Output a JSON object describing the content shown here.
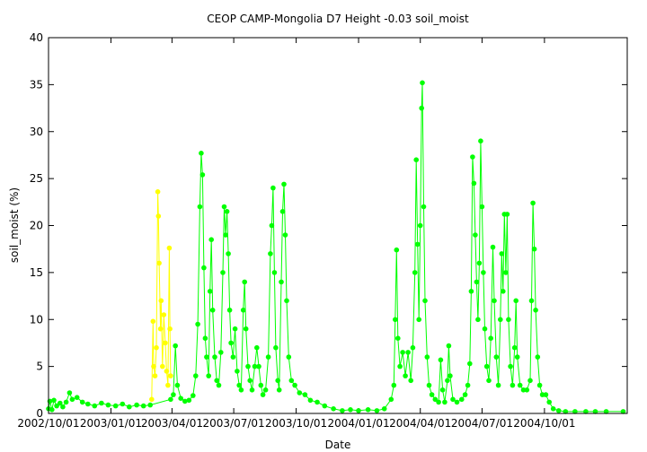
{
  "chart_data": {
    "type": "scatter",
    "title": "CEOP CAMP-Mongolia D7 Height -0.03 soil_moist",
    "xlabel": "Date",
    "ylabel": "soil_moist (%)",
    "xlim": [
      "2002-10-01",
      "2005-01-31"
    ],
    "ylim": [
      0,
      40
    ],
    "x_ticks": [
      "2002/10/01",
      "2003/01/01",
      "2003/04/01",
      "2003/07/01",
      "2003/10/01",
      "2004/01/01",
      "2004/04/01",
      "2004/07/01",
      "2004/10/01"
    ],
    "y_ticks": [
      0,
      5,
      10,
      15,
      20,
      25,
      30,
      35,
      40
    ],
    "grid": false,
    "legend": "none",
    "series": [
      {
        "color": "#00ff00",
        "style": "line-and-points",
        "points": [
          [
            "2002-10-01",
            0.5
          ],
          [
            "2002-10-03",
            1.3
          ],
          [
            "2002-10-06",
            0.4
          ],
          [
            "2002-10-09",
            1.4
          ],
          [
            "2002-10-13",
            0.8
          ],
          [
            "2002-10-18",
            1.1
          ],
          [
            "2002-10-22",
            0.7
          ],
          [
            "2002-10-27",
            1.2
          ],
          [
            "2002-11-01",
            2.2
          ],
          [
            "2002-11-05",
            1.5
          ],
          [
            "2002-11-12",
            1.7
          ],
          [
            "2002-11-20",
            1.2
          ],
          [
            "2002-11-28",
            1.0
          ],
          [
            "2002-12-08",
            0.8
          ],
          [
            "2002-12-18",
            1.1
          ],
          [
            "2002-12-28",
            0.9
          ],
          [
            "2003-01-08",
            0.8
          ],
          [
            "2003-01-18",
            1.0
          ],
          [
            "2003-01-28",
            0.7
          ],
          [
            "2003-02-08",
            0.9
          ],
          [
            "2003-02-18",
            0.8
          ],
          [
            "2003-02-28",
            0.9
          ],
          [
            "2003-03-30",
            1.5
          ],
          [
            "2003-04-03",
            2.0
          ],
          [
            "2003-04-06",
            7.2
          ],
          [
            "2003-04-09",
            3.0
          ],
          [
            "2003-04-14",
            1.6
          ],
          [
            "2003-04-20",
            1.3
          ],
          [
            "2003-04-26",
            1.4
          ],
          [
            "2003-05-02",
            1.9
          ],
          [
            "2003-05-06",
            4.0
          ],
          [
            "2003-05-09",
            9.5
          ],
          [
            "2003-05-12",
            22.0
          ],
          [
            "2003-05-14",
            27.7
          ],
          [
            "2003-05-16",
            25.4
          ],
          [
            "2003-05-18",
            15.5
          ],
          [
            "2003-05-20",
            8.0
          ],
          [
            "2003-05-22",
            6.0
          ],
          [
            "2003-05-25",
            4.0
          ],
          [
            "2003-05-27",
            13.0
          ],
          [
            "2003-05-29",
            18.5
          ],
          [
            "2003-05-31",
            11.0
          ],
          [
            "2003-06-03",
            6.0
          ],
          [
            "2003-06-06",
            3.5
          ],
          [
            "2003-06-09",
            3.0
          ],
          [
            "2003-06-12",
            6.5
          ],
          [
            "2003-06-15",
            15.0
          ],
          [
            "2003-06-17",
            22.0
          ],
          [
            "2003-06-19",
            19.0
          ],
          [
            "2003-06-21",
            21.5
          ],
          [
            "2003-06-23",
            17.0
          ],
          [
            "2003-06-25",
            11.0
          ],
          [
            "2003-06-27",
            7.5
          ],
          [
            "2003-06-30",
            6.0
          ],
          [
            "2003-07-03",
            9.0
          ],
          [
            "2003-07-06",
            4.5
          ],
          [
            "2003-07-09",
            3.0
          ],
          [
            "2003-07-12",
            2.5
          ],
          [
            "2003-07-15",
            11.0
          ],
          [
            "2003-07-17",
            14.0
          ],
          [
            "2003-07-19",
            9.0
          ],
          [
            "2003-07-22",
            5.0
          ],
          [
            "2003-07-25",
            3.5
          ],
          [
            "2003-07-28",
            2.5
          ],
          [
            "2003-08-01",
            5.0
          ],
          [
            "2003-08-04",
            7.0
          ],
          [
            "2003-08-07",
            5.0
          ],
          [
            "2003-08-10",
            3.0
          ],
          [
            "2003-08-13",
            2.0
          ],
          [
            "2003-08-17",
            2.5
          ],
          [
            "2003-08-21",
            6.0
          ],
          [
            "2003-08-24",
            17.0
          ],
          [
            "2003-08-26",
            20.0
          ],
          [
            "2003-08-28",
            24.0
          ],
          [
            "2003-08-30",
            15.0
          ],
          [
            "2003-09-01",
            7.0
          ],
          [
            "2003-09-04",
            3.5
          ],
          [
            "2003-09-06",
            2.5
          ],
          [
            "2003-09-09",
            14.0
          ],
          [
            "2003-09-11",
            21.5
          ],
          [
            "2003-09-13",
            24.4
          ],
          [
            "2003-09-15",
            19.0
          ],
          [
            "2003-09-17",
            12.0
          ],
          [
            "2003-09-20",
            6.0
          ],
          [
            "2003-09-24",
            3.5
          ],
          [
            "2003-09-29",
            3.0
          ],
          [
            "2003-10-06",
            2.2
          ],
          [
            "2003-10-14",
            2.0
          ],
          [
            "2003-10-22",
            1.4
          ],
          [
            "2003-11-01",
            1.2
          ],
          [
            "2003-11-12",
            0.8
          ],
          [
            "2003-11-25",
            0.5
          ],
          [
            "2003-12-08",
            0.3
          ],
          [
            "2003-12-20",
            0.4
          ],
          [
            "2004-01-01",
            0.3
          ],
          [
            "2004-01-15",
            0.4
          ],
          [
            "2004-01-28",
            0.3
          ],
          [
            "2004-02-08",
            0.5
          ],
          [
            "2004-02-18",
            1.5
          ],
          [
            "2004-02-22",
            3.0
          ],
          [
            "2004-02-24",
            10.0
          ],
          [
            "2004-02-26",
            17.4
          ],
          [
            "2004-02-28",
            8.0
          ],
          [
            "2004-03-02",
            5.0
          ],
          [
            "2004-03-06",
            6.5
          ],
          [
            "2004-03-10",
            4.0
          ],
          [
            "2004-03-14",
            6.5
          ],
          [
            "2004-03-18",
            3.5
          ],
          [
            "2004-03-21",
            7.0
          ],
          [
            "2004-03-24",
            15.0
          ],
          [
            "2004-03-26",
            27.0
          ],
          [
            "2004-03-28",
            18.0
          ],
          [
            "2004-03-30",
            10.0
          ],
          [
            "2004-04-01",
            20.0
          ],
          [
            "2004-04-03",
            32.5
          ],
          [
            "2004-04-04",
            35.2
          ],
          [
            "2004-04-06",
            22.0
          ],
          [
            "2004-04-08",
            12.0
          ],
          [
            "2004-04-11",
            6.0
          ],
          [
            "2004-04-14",
            3.0
          ],
          [
            "2004-04-18",
            2.0
          ],
          [
            "2004-04-23",
            1.5
          ],
          [
            "2004-04-28",
            1.2
          ],
          [
            "2004-05-01",
            5.7
          ],
          [
            "2004-05-04",
            2.5
          ],
          [
            "2004-05-07",
            1.2
          ],
          [
            "2004-05-11",
            3.5
          ],
          [
            "2004-05-13",
            7.2
          ],
          [
            "2004-05-15",
            4.0
          ],
          [
            "2004-05-19",
            1.5
          ],
          [
            "2004-05-25",
            1.2
          ],
          [
            "2004-06-01",
            1.5
          ],
          [
            "2004-06-06",
            2.0
          ],
          [
            "2004-06-10",
            3.0
          ],
          [
            "2004-06-13",
            5.3
          ],
          [
            "2004-06-15",
            13.0
          ],
          [
            "2004-06-17",
            27.3
          ],
          [
            "2004-06-19",
            24.5
          ],
          [
            "2004-06-21",
            19.0
          ],
          [
            "2004-06-23",
            14.0
          ],
          [
            "2004-06-25",
            10.0
          ],
          [
            "2004-06-27",
            16.0
          ],
          [
            "2004-06-29",
            29.0
          ],
          [
            "2004-07-01",
            22.0
          ],
          [
            "2004-07-03",
            15.0
          ],
          [
            "2004-07-05",
            9.0
          ],
          [
            "2004-07-08",
            5.0
          ],
          [
            "2004-07-11",
            3.5
          ],
          [
            "2004-07-14",
            8.0
          ],
          [
            "2004-07-17",
            17.7
          ],
          [
            "2004-07-19",
            12.0
          ],
          [
            "2004-07-22",
            6.0
          ],
          [
            "2004-07-25",
            3.0
          ],
          [
            "2004-07-28",
            10.0
          ],
          [
            "2004-07-30",
            17.0
          ],
          [
            "2004-08-01",
            13.0
          ],
          [
            "2004-08-03",
            21.2
          ],
          [
            "2004-08-05",
            15.0
          ],
          [
            "2004-08-07",
            21.2
          ],
          [
            "2004-08-09",
            10.0
          ],
          [
            "2004-08-12",
            5.0
          ],
          [
            "2004-08-15",
            3.0
          ],
          [
            "2004-08-18",
            7.0
          ],
          [
            "2004-08-20",
            12.0
          ],
          [
            "2004-08-22",
            6.0
          ],
          [
            "2004-08-26",
            3.0
          ],
          [
            "2004-08-31",
            2.5
          ],
          [
            "2004-09-05",
            2.5
          ],
          [
            "2004-09-10",
            3.5
          ],
          [
            "2004-09-12",
            12.0
          ],
          [
            "2004-09-14",
            22.4
          ],
          [
            "2004-09-16",
            17.5
          ],
          [
            "2004-09-18",
            11.0
          ],
          [
            "2004-09-21",
            6.0
          ],
          [
            "2004-09-24",
            3.0
          ],
          [
            "2004-09-28",
            2.0
          ],
          [
            "2004-10-03",
            2.0
          ],
          [
            "2004-10-08",
            1.2
          ],
          [
            "2004-10-14",
            0.5
          ],
          [
            "2004-10-22",
            0.3
          ],
          [
            "2004-11-01",
            0.2
          ],
          [
            "2004-11-15",
            0.2
          ],
          [
            "2004-12-01",
            0.2
          ],
          [
            "2004-12-15",
            0.2
          ],
          [
            "2004-12-31",
            0.2
          ],
          [
            "2005-01-25",
            0.2
          ]
        ]
      },
      {
        "color": "#ffff00",
        "style": "line-and-points",
        "points": [
          [
            "2003-03-02",
            1.5
          ],
          [
            "2003-03-04",
            9.8
          ],
          [
            "2003-03-05",
            5.0
          ],
          [
            "2003-03-07",
            4.0
          ],
          [
            "2003-03-09",
            7.0
          ],
          [
            "2003-03-11",
            23.6
          ],
          [
            "2003-03-12",
            21.0
          ],
          [
            "2003-03-13",
            16.0
          ],
          [
            "2003-03-15",
            9.0
          ],
          [
            "2003-03-16",
            12.0
          ],
          [
            "2003-03-18",
            5.0
          ],
          [
            "2003-03-20",
            10.5
          ],
          [
            "2003-03-22",
            7.5
          ],
          [
            "2003-03-24",
            4.5
          ],
          [
            "2003-03-26",
            3.0
          ],
          [
            "2003-03-28",
            17.6
          ],
          [
            "2003-03-29",
            9.0
          ],
          [
            "2003-03-30",
            4.0
          ]
        ]
      }
    ]
  }
}
